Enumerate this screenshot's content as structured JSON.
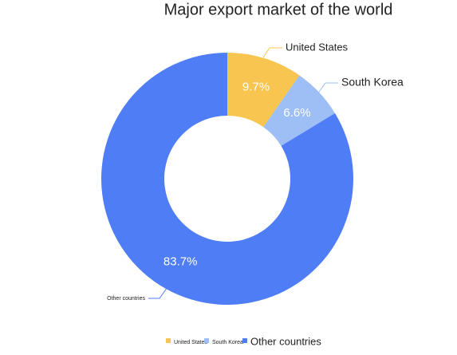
{
  "chart_data": {
    "type": "donut",
    "title": "Major export market of the world",
    "categories": [
      "United States",
      "South Korea",
      "Other countries"
    ],
    "values": [
      9.7,
      6.6,
      83.7
    ],
    "value_labels": [
      "9.7%",
      "6.6%",
      "83.7%"
    ],
    "colors": [
      "#f8c650",
      "#9dbff6",
      "#4f7df6"
    ],
    "legend": "bottom"
  }
}
